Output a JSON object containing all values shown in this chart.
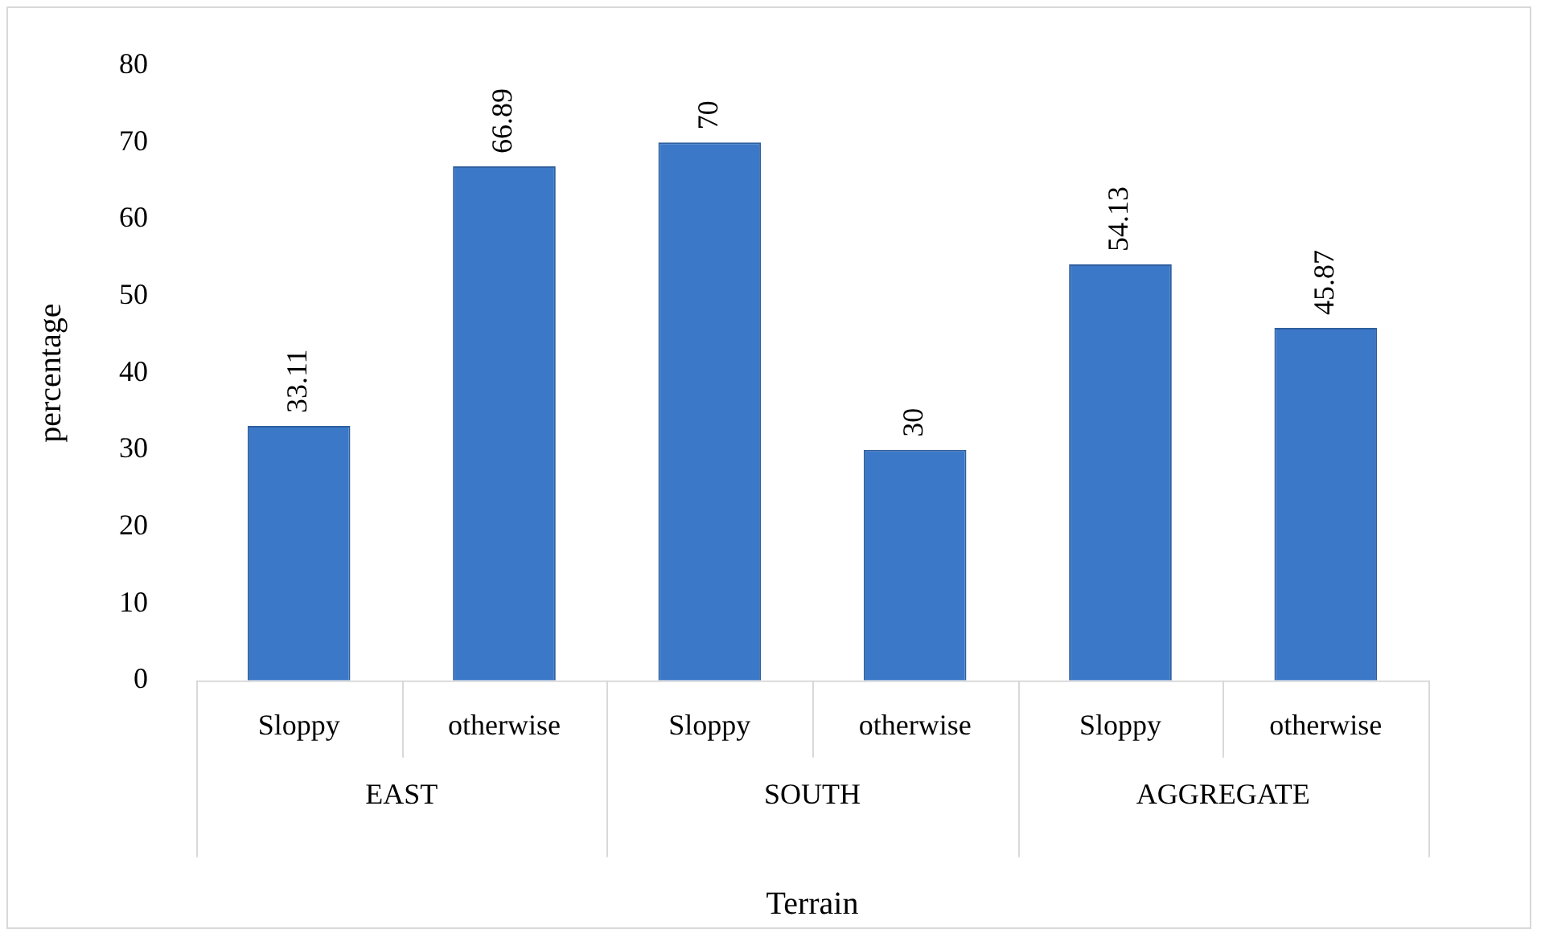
{
  "chart_data": {
    "type": "bar",
    "xlabel": "Terrain",
    "ylabel": "percentage",
    "categories": [
      "Sloppy",
      "otherwise",
      "Sloppy",
      "otherwise",
      "Sloppy",
      "otherwise"
    ],
    "values": [
      33.11,
      66.89,
      70,
      30,
      54.13,
      45.87
    ],
    "color": "#3b78c8",
    "ylim": [
      0,
      80
    ],
    "yticks": [
      0,
      10,
      20,
      30,
      40,
      50,
      60,
      70,
      80
    ],
    "annotations": [
      "EAST",
      "SOUTH",
      "AGGREGATE"
    ],
    "data_labels": true,
    "grid": false,
    "legend": false
  }
}
